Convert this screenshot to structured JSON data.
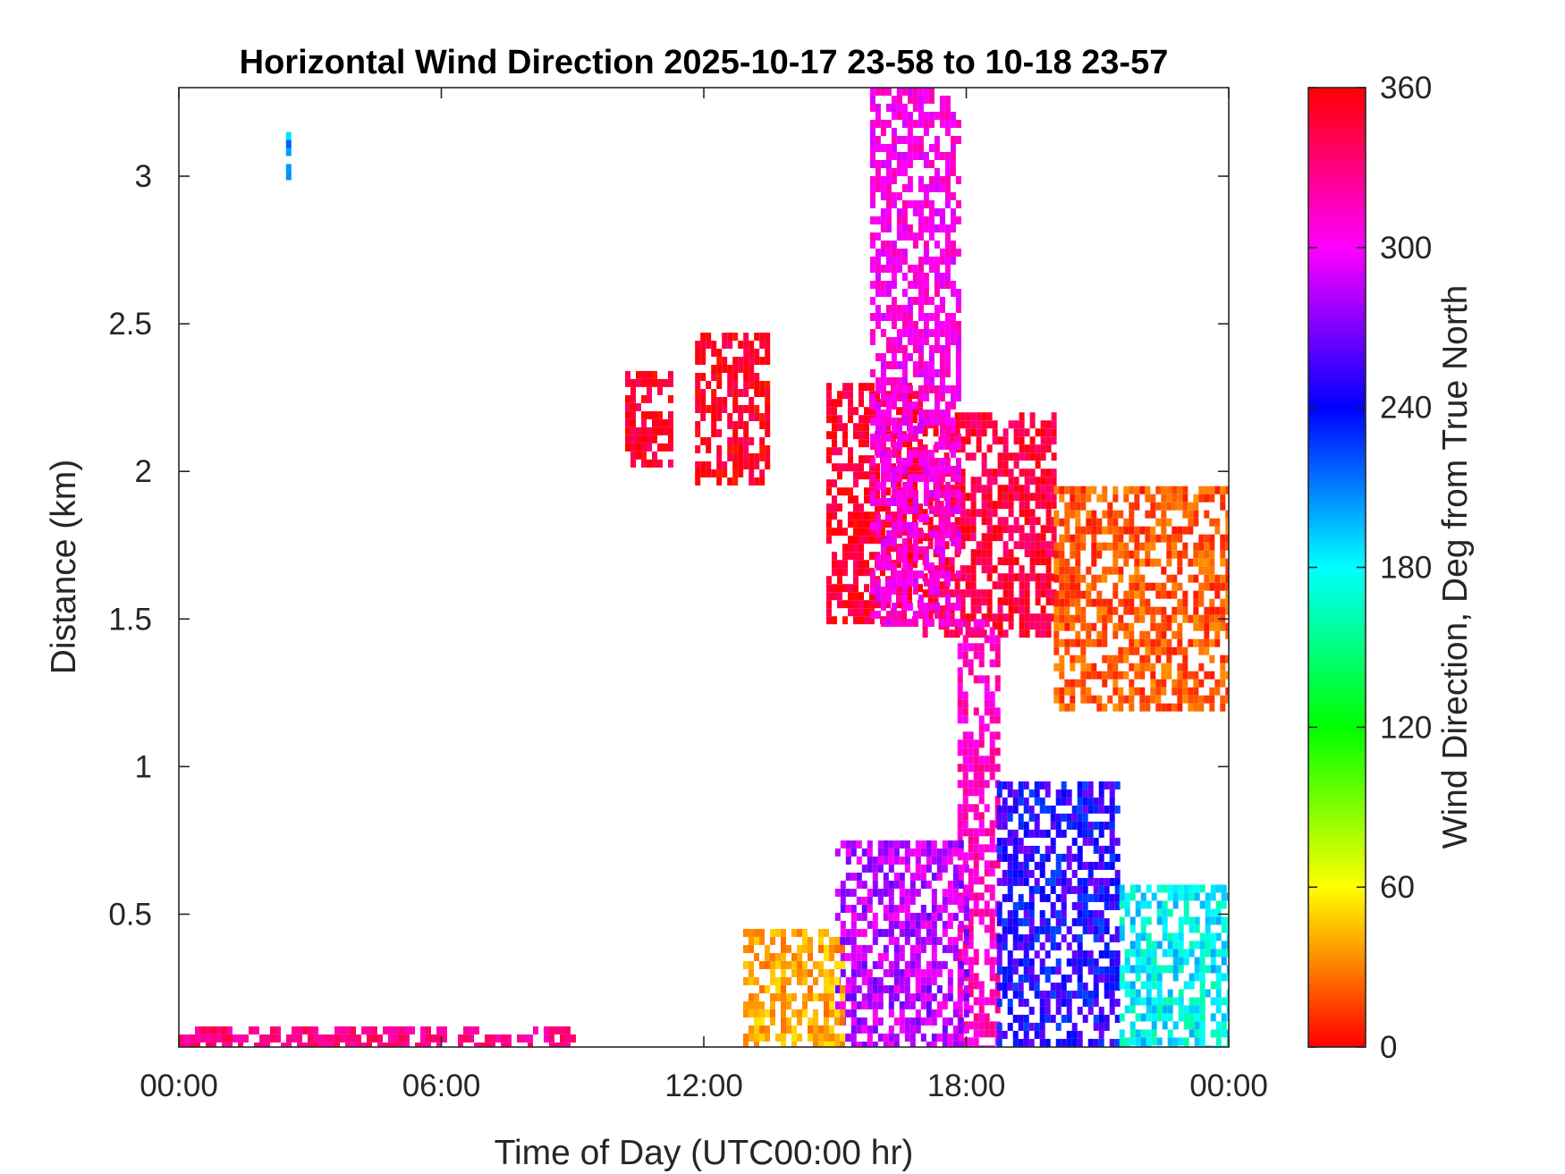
{
  "chart_data": {
    "type": "heatmap",
    "title": "Horizontal Wind Direction 2025-10-17 23-58 to 10-18 23-57",
    "xlabel": "Time of Day (UTC00:00 hr)",
    "ylabel": "Distance (km)",
    "xlim": [
      0,
      24
    ],
    "ylim": [
      0.05,
      3.3
    ],
    "x_ticks": [
      0,
      6,
      12,
      18,
      24
    ],
    "x_tick_labels": [
      "00:00",
      "06:00",
      "12:00",
      "18:00",
      "00:00"
    ],
    "y_ticks": [
      0.5,
      1,
      1.5,
      2,
      2.5,
      3
    ],
    "y_tick_labels": [
      "0.5",
      "1",
      "1.5",
      "2",
      "2.5",
      "3"
    ],
    "colorbar": {
      "label": "Wind Direction, Deg from True North",
      "range": [
        0,
        360
      ],
      "ticks": [
        0,
        60,
        120,
        180,
        240,
        300,
        360
      ],
      "tick_labels": [
        "0",
        "60",
        "120",
        "180",
        "240",
        "300",
        "360"
      ],
      "colormap": "hsv",
      "colors": [
        "#ff0000",
        "#ffff00",
        "#00ff00",
        "#00ffff",
        "#0000ff",
        "#ff00ff",
        "#ff0000"
      ]
    },
    "regions": [
      {
        "t0": 2.45,
        "t1": 2.55,
        "z0": 2.96,
        "z1": 3.15,
        "dir": 195
      },
      {
        "t0": 10.2,
        "t1": 11.3,
        "z0": 2.03,
        "z1": 2.34,
        "dir": 350
      },
      {
        "t0": 11.8,
        "t1": 13.4,
        "z0": 1.96,
        "z1": 2.47,
        "dir": 352
      },
      {
        "t0": 14.8,
        "t1": 17.0,
        "z0": 1.5,
        "z1": 2.3,
        "dir": 350
      },
      {
        "t0": 17.0,
        "t1": 20.0,
        "z0": 1.45,
        "z1": 2.2,
        "dir": 345
      },
      {
        "t0": 20.0,
        "t1": 24.0,
        "z0": 1.2,
        "z1": 1.95,
        "dir": 20
      },
      {
        "t0": 15.8,
        "t1": 17.8,
        "z0": 1.5,
        "z1": 3.3,
        "dir": 305
      },
      {
        "t0": 17.8,
        "t1": 18.7,
        "z0": 0.05,
        "z1": 1.5,
        "dir": 315
      },
      {
        "t0": 15.0,
        "t1": 18.0,
        "z0": 0.05,
        "z1": 0.75,
        "dir": 285
      },
      {
        "t0": 18.7,
        "t1": 21.5,
        "z0": 0.05,
        "z1": 0.95,
        "dir": 245
      },
      {
        "t0": 21.5,
        "t1": 24.0,
        "z0": 0.05,
        "z1": 0.6,
        "dir": 180
      },
      {
        "t0": 12.9,
        "t1": 15.2,
        "z0": 0.05,
        "z1": 0.45,
        "dir": 40
      },
      {
        "t0": 0.0,
        "t1": 9.0,
        "z0": 0.05,
        "z1": 0.12,
        "dir": 330
      }
    ]
  }
}
